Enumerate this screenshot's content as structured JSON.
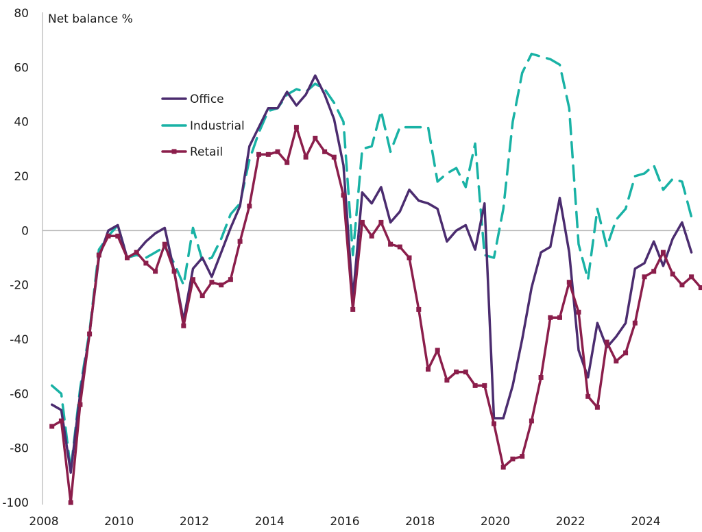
{
  "chart_data": {
    "type": "line",
    "title": "",
    "ylabel": "Net balance %",
    "xlabel": "",
    "ylim": [
      -100,
      80
    ],
    "xlim": [
      2008,
      2025.8
    ],
    "yticks": [
      80,
      60,
      40,
      20,
      0,
      -20,
      -40,
      -60,
      -80,
      -100
    ],
    "xticks": [
      2008,
      2010,
      2012,
      2014,
      2016,
      2018,
      2020,
      2022,
      2024
    ],
    "zero_line": true,
    "grid": false,
    "legend": {
      "position": "upper-left-inside"
    },
    "x_start": 2008.25,
    "x_step": 0.25,
    "series": [
      {
        "name": "Office",
        "color": "#4B2C6F",
        "style": "solid",
        "marker": "none",
        "values": [
          -64,
          -66,
          -89,
          -60,
          -38,
          -10,
          0,
          2,
          -10,
          -8,
          -4,
          -1,
          1,
          -15,
          -33,
          -14,
          -10,
          -17,
          -8,
          1,
          9,
          31,
          38,
          45,
          45,
          51,
          46,
          50,
          57,
          50,
          41,
          24,
          -25,
          14,
          10,
          16,
          3,
          7,
          15,
          11,
          10,
          8,
          -4,
          0,
          2,
          -7,
          10,
          -69,
          -69,
          -57,
          -40,
          -21,
          -8,
          -6,
          12,
          -8,
          -44,
          -54,
          -34,
          -43,
          -39,
          -34,
          -14,
          -12,
          -4,
          -13,
          -3,
          3,
          -8
        ]
      },
      {
        "name": "Industrial",
        "color": "#19B2A5",
        "style": "dashed",
        "marker": "none",
        "values": [
          -57,
          -60,
          -88,
          -58,
          -37,
          -7,
          -2,
          2,
          -10,
          -9,
          -10,
          -8,
          -6,
          -12,
          -20,
          1,
          -11,
          -10,
          -3,
          6,
          10,
          26,
          36,
          44,
          45,
          50,
          52,
          51,
          54,
          52,
          47,
          40,
          -9,
          30,
          31,
          44,
          29,
          38,
          38,
          38,
          38,
          18,
          21,
          23,
          16,
          32,
          -9,
          -10,
          8,
          40,
          58,
          65,
          64,
          63,
          61,
          45,
          -5,
          -18,
          8,
          -6,
          4,
          8,
          20,
          21,
          24,
          15,
          19,
          18,
          5
        ]
      },
      {
        "name": "Retail",
        "color": "#8B1E4B",
        "style": "solid",
        "marker": "square",
        "values": [
          -72,
          -70,
          -100,
          -64,
          -38,
          -9,
          -2,
          -2,
          -10,
          -8,
          -12,
          -15,
          -5,
          -15,
          -35,
          -18,
          -24,
          -19,
          -20,
          -18,
          -4,
          9,
          28,
          28,
          29,
          25,
          38,
          27,
          34,
          29,
          27,
          13,
          -29,
          3,
          -2,
          3,
          -5,
          -6,
          -10,
          -29,
          -51,
          -44,
          -55,
          -52,
          -52,
          -57,
          -57,
          -71,
          -87,
          -84,
          -83,
          -70,
          -54,
          -32,
          -32,
          -19,
          -30,
          -61,
          -65,
          -41,
          -48,
          -45,
          -34,
          -17,
          -15,
          -8,
          -16,
          -20,
          -17,
          -21
        ]
      }
    ]
  }
}
